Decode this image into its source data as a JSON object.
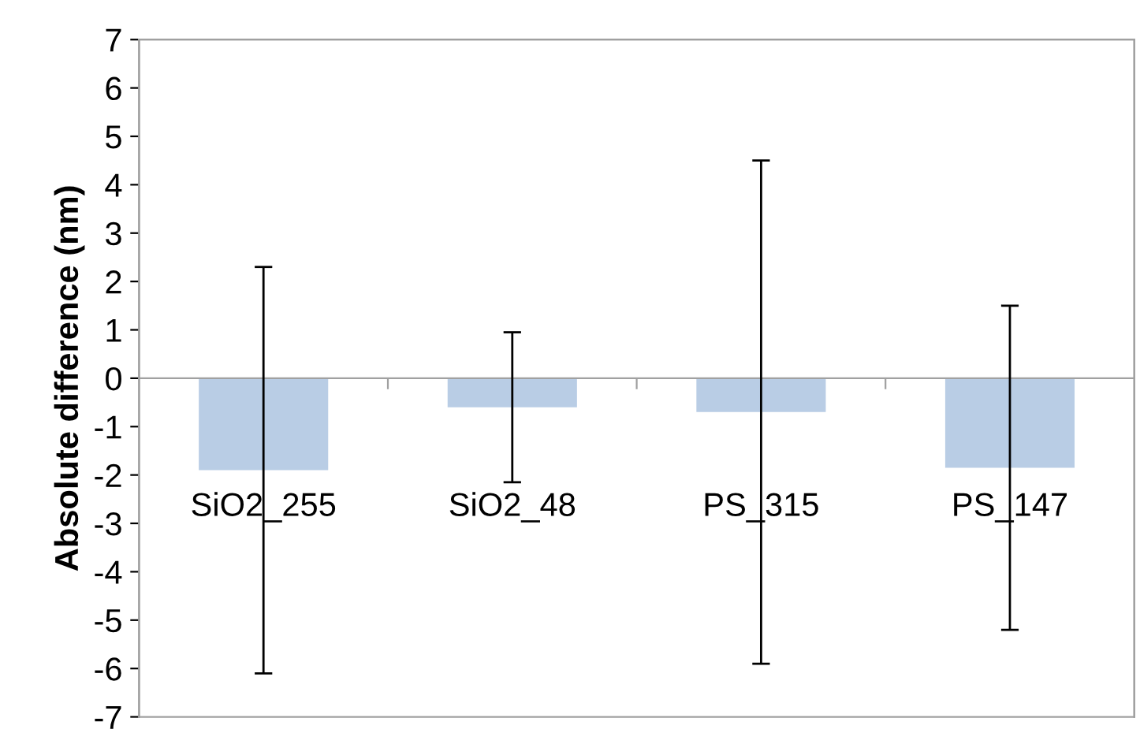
{
  "chart_data": {
    "type": "bar",
    "ylabel": "Absolute difference (nm)",
    "categories": [
      "SiO2_255",
      "SiO2_48",
      "PS_315",
      "PS_147"
    ],
    "values": [
      -1.9,
      -0.6,
      -0.7,
      -1.85
    ],
    "errors": [
      4.2,
      1.55,
      5.2,
      3.35
    ],
    "color": "#b9cde5",
    "ylim": [
      -7,
      7
    ],
    "yticks": [
      -7,
      -6,
      -5,
      -4,
      -3,
      -2,
      -1,
      0,
      1,
      2,
      3,
      4,
      5,
      6,
      7
    ],
    "grid": false,
    "legend": false
  }
}
